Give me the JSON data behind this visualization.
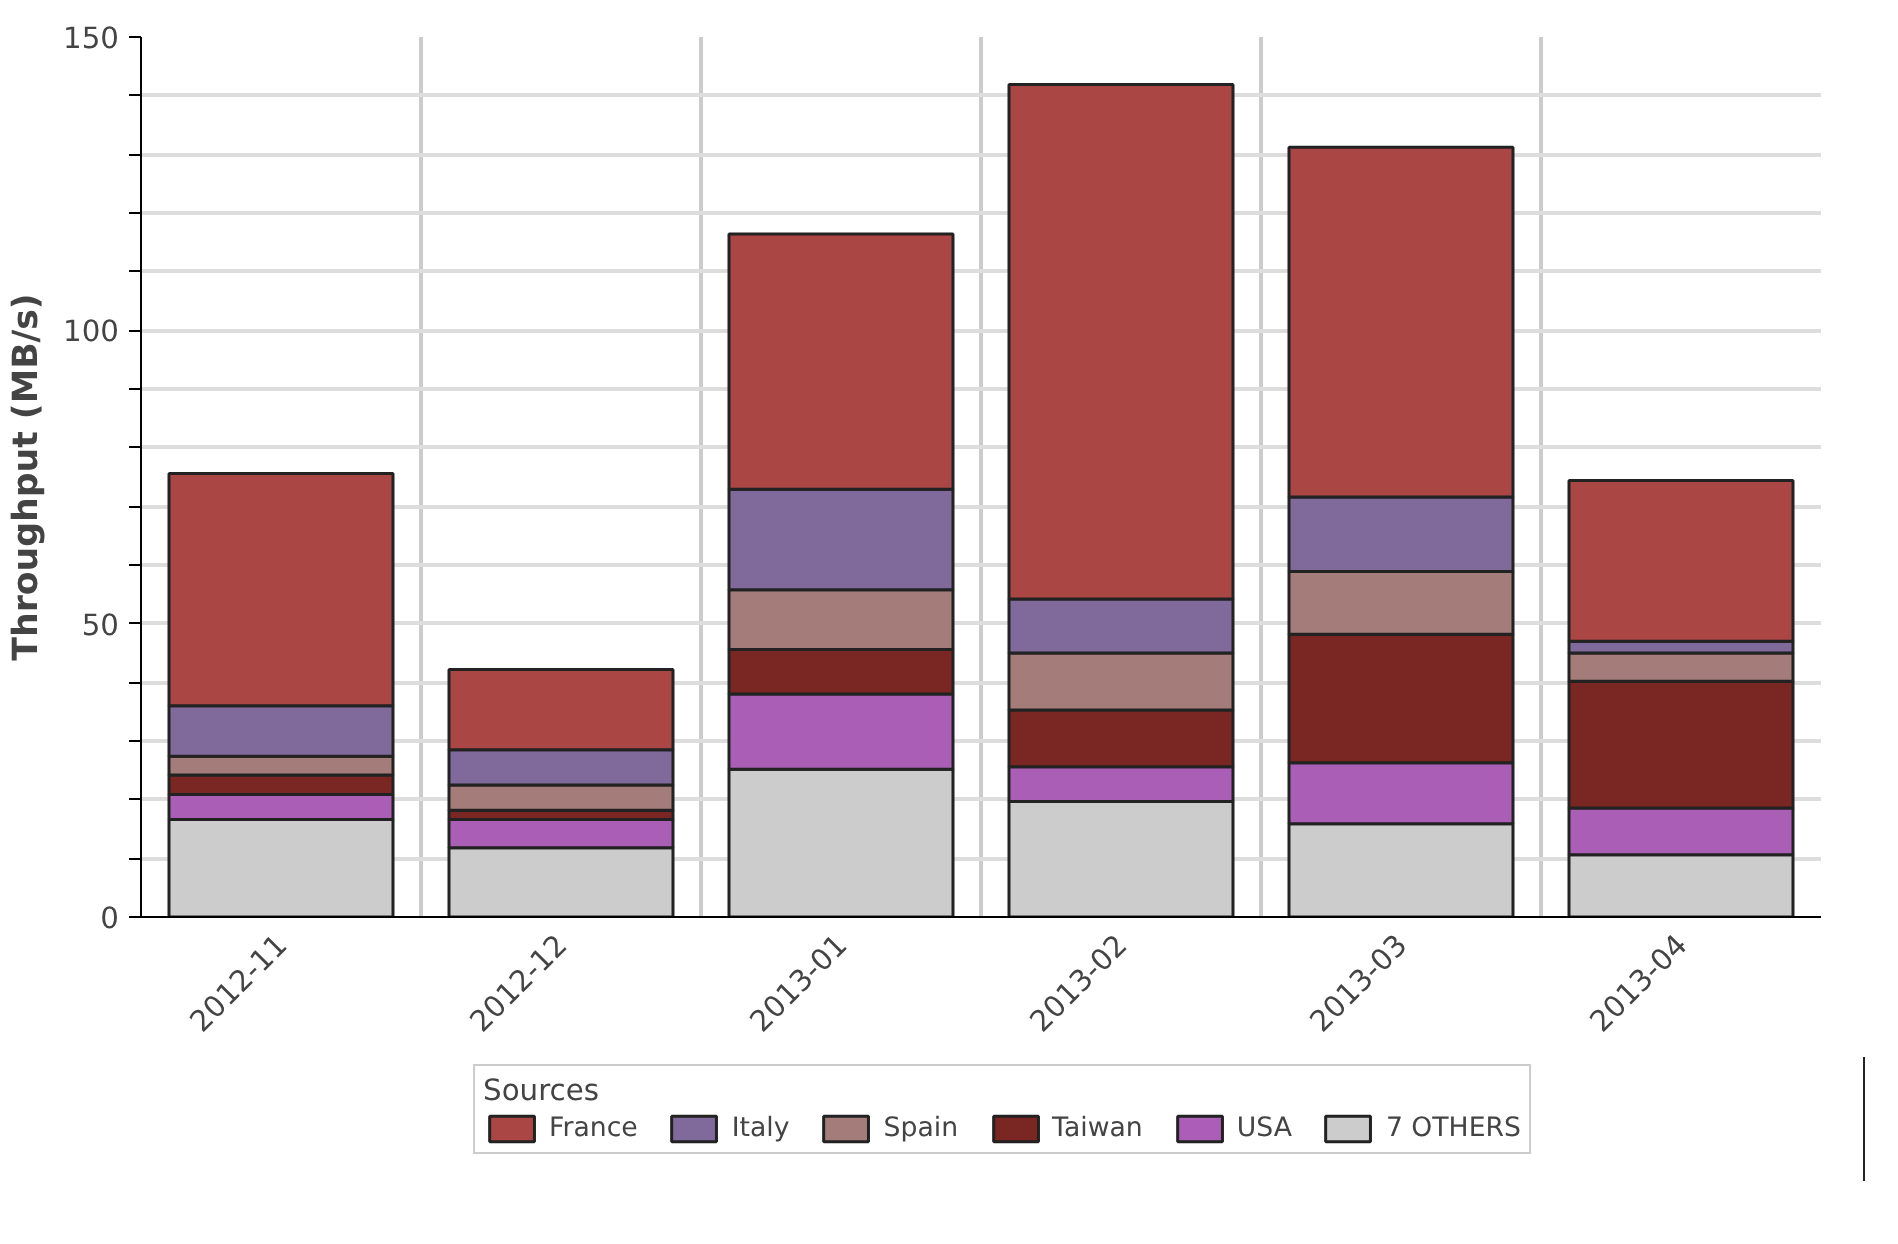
{
  "chart_data": {
    "type": "bar",
    "stacked": true,
    "ylabel": "Throughput (MB/s)",
    "legend_title": "Sources",
    "categories": [
      "2012-11",
      "2012-12",
      "2013-01",
      "2013-02",
      "2013-03",
      "2013-04"
    ],
    "series": [
      {
        "name": "7 OTHERS",
        "color": "#cccccc",
        "values": [
          16.6,
          11.8,
          25.2,
          19.7,
          15.9,
          10.6
        ]
      },
      {
        "name": "USA",
        "color": "#aa5eb5",
        "values": [
          4.3,
          4.8,
          12.8,
          5.9,
          10.4,
          8.0
        ]
      },
      {
        "name": "Taiwan",
        "color": "#7a2622",
        "values": [
          3.3,
          1.6,
          7.6,
          9.7,
          21.9,
          21.6
        ]
      },
      {
        "name": "Spain",
        "color": "#a47d7b",
        "values": [
          3.2,
          4.3,
          10.2,
          9.7,
          10.7,
          4.8
        ]
      },
      {
        "name": "Italy",
        "color": "#80699b",
        "values": [
          8.6,
          6.0,
          17.1,
          9.2,
          12.7,
          2.0
        ]
      },
      {
        "name": "France",
        "color": "#aa4643",
        "values": [
          39.6,
          13.7,
          43.5,
          87.7,
          59.6,
          27.4
        ]
      }
    ],
    "ylim": [
      0,
      150
    ],
    "yticks": [
      0,
      {
        "value": 10,
        "label": null
      },
      {
        "value": 20,
        "label": null
      },
      {
        "value": 30,
        "label": null
      },
      {
        "value": 40,
        "label": null
      },
      50,
      {
        "value": 60,
        "label": null
      },
      {
        "value": 70,
        "label": null
      },
      {
        "value": 80,
        "label": null
      },
      {
        "value": 90,
        "label": null
      },
      100,
      {
        "value": 110,
        "label": null
      },
      {
        "value": 120,
        "label": null
      },
      {
        "value": 130,
        "label": null
      },
      {
        "value": 140,
        "label": null
      },
      150
    ],
    "grid": true,
    "legend": "bottom"
  }
}
